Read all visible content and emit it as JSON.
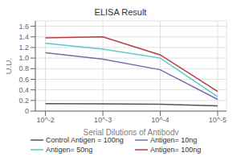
{
  "chart_data": {
    "type": "line",
    "title": "ELISA Result",
    "xlabel": "Serial Dilutions  of Antibody",
    "ylabel": "O.D.",
    "log": "x",
    "grid": true,
    "legend": "bottom",
    "x": [
      0.01,
      0.001,
      0.0001,
      1e-05
    ],
    "xlim": [
      0.015,
      7e-06
    ],
    "xticks": [
      {
        "value": 0.01,
        "label": "10^-2"
      },
      {
        "value": 0.001,
        "label": "10^-3"
      },
      {
        "value": 0.0001,
        "label": "10^-4"
      },
      {
        "value": 1e-05,
        "label": "10^-5"
      }
    ],
    "ylim": [
      0,
      1.7
    ],
    "yticks": [
      0,
      0.2,
      0.4,
      0.6,
      0.8,
      {
        "value": 1,
        "label": "1.0"
      },
      1.2,
      1.4,
      1.6
    ],
    "series": [
      {
        "name": "Control Antigen = 100ng",
        "color": "#555555",
        "values": [
          0.14,
          0.135,
          0.13,
          0.1
        ]
      },
      {
        "name": "Antigen= 10ng",
        "color": "#7b6ba8",
        "values": [
          1.1,
          0.98,
          0.78,
          0.22
        ]
      },
      {
        "name": "Antigen= 50ng",
        "color": "#5ec8c8",
        "values": [
          1.28,
          1.17,
          1.0,
          0.27
        ]
      },
      {
        "name": "Antigen= 100ng",
        "color": "#b54040",
        "values": [
          1.38,
          1.4,
          1.06,
          0.37
        ]
      }
    ]
  }
}
